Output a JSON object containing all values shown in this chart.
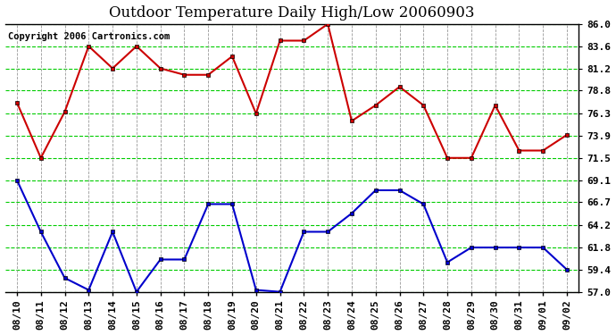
{
  "title": "Outdoor Temperature Daily High/Low 20060903",
  "copyright": "Copyright 2006 Cartronics.com",
  "x_labels": [
    "08/10",
    "08/11",
    "08/12",
    "08/13",
    "08/14",
    "08/15",
    "08/16",
    "08/17",
    "08/18",
    "08/19",
    "08/20",
    "08/21",
    "08/22",
    "08/23",
    "08/24",
    "08/25",
    "08/26",
    "08/27",
    "08/28",
    "08/29",
    "08/30",
    "08/31",
    "09/01",
    "09/02"
  ],
  "high_temps": [
    77.5,
    71.5,
    76.5,
    83.6,
    81.2,
    83.6,
    81.2,
    80.5,
    80.5,
    82.5,
    76.3,
    84.2,
    84.2,
    86.0,
    75.5,
    77.2,
    79.2,
    77.2,
    71.5,
    71.5,
    77.2,
    72.3,
    72.3,
    74.0
  ],
  "low_temps": [
    69.1,
    63.5,
    58.5,
    57.2,
    63.5,
    57.0,
    60.5,
    60.5,
    66.5,
    66.5,
    57.2,
    57.0,
    63.5,
    63.5,
    65.5,
    68.0,
    68.0,
    66.5,
    60.2,
    61.8,
    61.8,
    61.8,
    61.8,
    59.4
  ],
  "high_color": "#cc0000",
  "low_color": "#0000cc",
  "marker": "s",
  "marker_size": 3,
  "line_width": 1.5,
  "ylim": [
    57.0,
    86.0
  ],
  "yticks": [
    57.0,
    59.4,
    61.8,
    64.2,
    66.7,
    69.1,
    71.5,
    73.9,
    76.3,
    78.8,
    81.2,
    83.6,
    86.0
  ],
  "bg_color": "#ffffff",
  "plot_bg_color": "#ffffff",
  "grid_color_h": "#00cc00",
  "grid_color_v": "#999999",
  "grid_style_h": "--",
  "grid_style_v": "--",
  "title_fontsize": 12,
  "copyright_fontsize": 7.5,
  "tick_fontsize": 8,
  "border_color": "#000000",
  "figsize": [
    6.9,
    3.75
  ],
  "dpi": 100
}
